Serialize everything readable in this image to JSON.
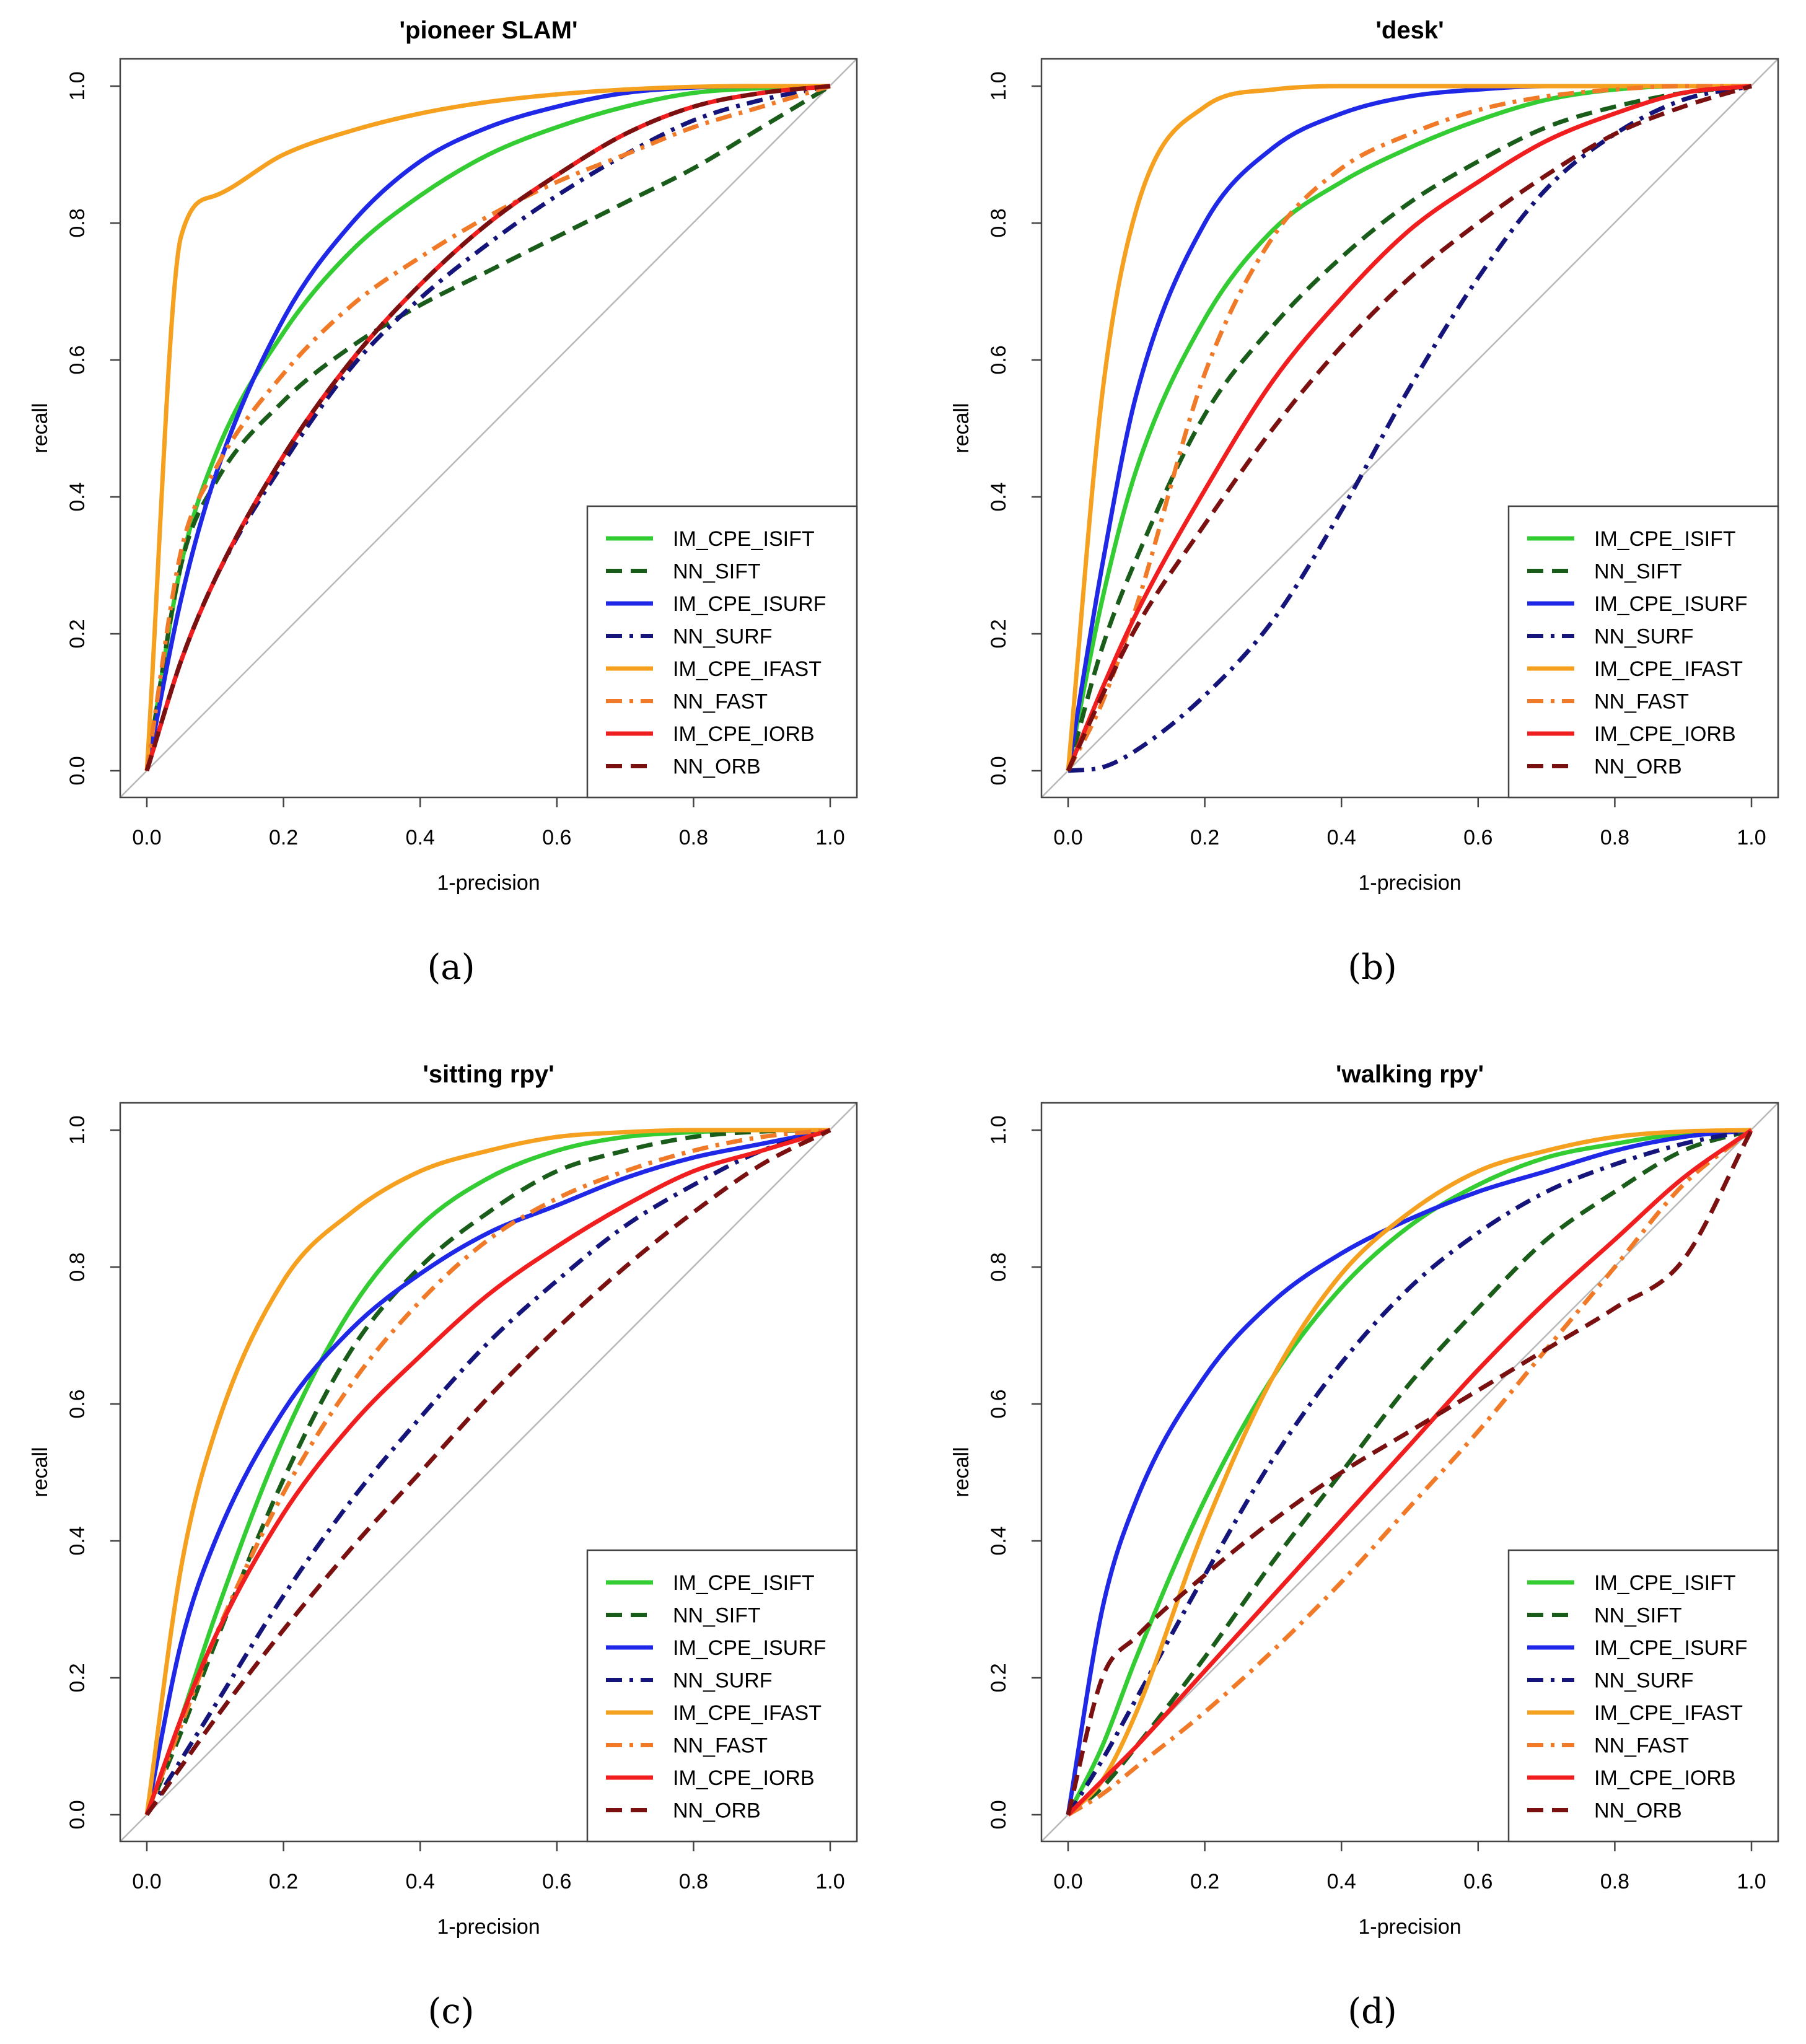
{
  "figure": {
    "series_styles": {
      "IM_CPE_ISIFT": {
        "color": "#33cc33",
        "dash": "solid"
      },
      "NN_SIFT": {
        "color": "#1a5c1a",
        "dash": "dash"
      },
      "IM_CPE_ISURF": {
        "color": "#1e28e6",
        "dash": "solid"
      },
      "NN_SURF": {
        "color": "#14147a",
        "dash": "dashdot"
      },
      "IM_CPE_IFAST": {
        "color": "#f5a01e",
        "dash": "solid"
      },
      "NN_FAST": {
        "color": "#f07a28",
        "dash": "dashdot"
      },
      "IM_CPE_IORB": {
        "color": "#f01e1e",
        "dash": "solid"
      },
      "NN_ORB": {
        "color": "#7a1010",
        "dash": "dash"
      }
    },
    "diagonal_color": "#b8b8b8"
  },
  "chart_data": [
    {
      "type": "line",
      "title": "'pioneer SLAM'",
      "caption": "(a)",
      "xlabel": "1-precision",
      "ylabel": "recall",
      "xlim": [
        0,
        1
      ],
      "ylim": [
        0,
        1
      ],
      "xticks": [
        "0.0",
        "0.2",
        "0.4",
        "0.6",
        "0.8",
        "1.0"
      ],
      "yticks": [
        "0.0",
        "0.2",
        "0.4",
        "0.6",
        "0.8",
        "1.0"
      ],
      "x": [
        0,
        0.05,
        0.1,
        0.2,
        0.3,
        0.4,
        0.5,
        0.6,
        0.7,
        0.8,
        0.9,
        1.0
      ],
      "series": [
        {
          "name": "IM_CPE_ISIFT",
          "values": [
            0,
            0.3,
            0.46,
            0.64,
            0.76,
            0.84,
            0.9,
            0.94,
            0.97,
            0.99,
            0.997,
            1.0
          ]
        },
        {
          "name": "NN_SIFT",
          "values": [
            0,
            0.3,
            0.42,
            0.54,
            0.62,
            0.68,
            0.73,
            0.78,
            0.83,
            0.88,
            0.94,
            1.0
          ]
        },
        {
          "name": "IM_CPE_ISURF",
          "values": [
            0,
            0.25,
            0.43,
            0.66,
            0.8,
            0.89,
            0.94,
            0.97,
            0.99,
            0.998,
            1.0,
            1.0
          ]
        },
        {
          "name": "NN_SURF",
          "values": [
            0,
            0.16,
            0.28,
            0.45,
            0.59,
            0.69,
            0.77,
            0.84,
            0.9,
            0.95,
            0.98,
            1.0
          ]
        },
        {
          "name": "IM_CPE_IFAST",
          "values": [
            0,
            0.78,
            0.84,
            0.9,
            0.935,
            0.96,
            0.977,
            0.988,
            0.995,
            0.999,
            1.0,
            1.0
          ]
        },
        {
          "name": "NN_FAST",
          "values": [
            0,
            0.32,
            0.44,
            0.58,
            0.68,
            0.75,
            0.81,
            0.86,
            0.9,
            0.94,
            0.97,
            1.0
          ]
        },
        {
          "name": "IM_CPE_IORB",
          "values": [
            0,
            0.16,
            0.28,
            0.46,
            0.6,
            0.71,
            0.8,
            0.87,
            0.93,
            0.97,
            0.99,
            1.0
          ]
        },
        {
          "name": "NN_ORB",
          "values": [
            0,
            0.16,
            0.28,
            0.46,
            0.6,
            0.71,
            0.8,
            0.87,
            0.93,
            0.97,
            0.99,
            1.0
          ]
        }
      ],
      "legend": [
        "IM_CPE_ISIFT",
        "NN_SIFT",
        "IM_CPE_ISURF",
        "NN_SURF",
        "IM_CPE_IFAST",
        "NN_FAST",
        "IM_CPE_IORB",
        "NN_ORB"
      ],
      "legend_position": "bottom-right"
    },
    {
      "type": "line",
      "title": "'desk'",
      "caption": "(b)",
      "xlabel": "1-precision",
      "ylabel": "recall",
      "xlim": [
        0,
        1
      ],
      "ylim": [
        0,
        1
      ],
      "xticks": [
        "0.0",
        "0.2",
        "0.4",
        "0.6",
        "0.8",
        "1.0"
      ],
      "yticks": [
        "0.0",
        "0.2",
        "0.4",
        "0.6",
        "0.8",
        "1.0"
      ],
      "x": [
        0,
        0.05,
        0.1,
        0.2,
        0.3,
        0.4,
        0.5,
        0.6,
        0.7,
        0.8,
        0.9,
        1.0
      ],
      "series": [
        {
          "name": "IM_CPE_ISIFT",
          "values": [
            0,
            0.25,
            0.44,
            0.66,
            0.79,
            0.86,
            0.91,
            0.95,
            0.98,
            0.995,
            1.0,
            1.0
          ]
        },
        {
          "name": "NN_SIFT",
          "values": [
            0,
            0.18,
            0.31,
            0.52,
            0.65,
            0.75,
            0.83,
            0.89,
            0.94,
            0.97,
            0.99,
            1.0
          ]
        },
        {
          "name": "IM_CPE_ISURF",
          "values": [
            0,
            0.3,
            0.55,
            0.8,
            0.91,
            0.96,
            0.985,
            0.995,
            1.0,
            1.0,
            1.0,
            1.0
          ]
        },
        {
          "name": "NN_SURF",
          "values": [
            0,
            0.005,
            0.03,
            0.11,
            0.22,
            0.38,
            0.56,
            0.72,
            0.85,
            0.93,
            0.98,
            1.0
          ]
        },
        {
          "name": "IM_CPE_IFAST",
          "values": [
            0,
            0.55,
            0.82,
            0.97,
            0.995,
            1.0,
            1.0,
            1.0,
            1.0,
            1.0,
            1.0,
            1.0
          ]
        },
        {
          "name": "NN_FAST",
          "values": [
            0,
            0.1,
            0.24,
            0.58,
            0.78,
            0.88,
            0.93,
            0.965,
            0.985,
            0.995,
            1.0,
            1.0
          ]
        },
        {
          "name": "IM_CPE_IORB",
          "values": [
            0,
            0.12,
            0.23,
            0.41,
            0.57,
            0.69,
            0.79,
            0.86,
            0.92,
            0.96,
            0.99,
            1.0
          ]
        },
        {
          "name": "NN_ORB",
          "values": [
            0,
            0.11,
            0.21,
            0.36,
            0.5,
            0.62,
            0.72,
            0.8,
            0.87,
            0.93,
            0.97,
            1.0
          ]
        }
      ],
      "legend": [
        "IM_CPE_ISIFT",
        "NN_SIFT",
        "IM_CPE_ISURF",
        "NN_SURF",
        "IM_CPE_IFAST",
        "NN_FAST",
        "IM_CPE_IORB",
        "NN_ORB"
      ],
      "legend_position": "bottom-right"
    },
    {
      "type": "line",
      "title": "'sitting rpy'",
      "caption": "(c)",
      "xlabel": "1-precision",
      "ylabel": "recall",
      "xlim": [
        0,
        1
      ],
      "ylim": [
        0,
        1
      ],
      "xticks": [
        "0.0",
        "0.2",
        "0.4",
        "0.6",
        "0.8",
        "1.0"
      ],
      "yticks": [
        "0.0",
        "0.2",
        "0.4",
        "0.6",
        "0.8",
        "1.0"
      ],
      "x": [
        0,
        0.05,
        0.1,
        0.2,
        0.3,
        0.4,
        0.5,
        0.6,
        0.7,
        0.8,
        0.9,
        1.0
      ],
      "series": [
        {
          "name": "IM_CPE_ISIFT",
          "values": [
            0,
            0.14,
            0.29,
            0.55,
            0.74,
            0.86,
            0.93,
            0.97,
            0.99,
            0.997,
            1.0,
            1.0
          ]
        },
        {
          "name": "NN_SIFT",
          "values": [
            0,
            0.12,
            0.25,
            0.49,
            0.68,
            0.8,
            0.88,
            0.94,
            0.97,
            0.99,
            0.998,
            1.0
          ]
        },
        {
          "name": "IM_CPE_ISURF",
          "values": [
            0,
            0.25,
            0.4,
            0.59,
            0.71,
            0.79,
            0.85,
            0.89,
            0.93,
            0.96,
            0.98,
            1.0
          ]
        },
        {
          "name": "NN_SURF",
          "values": [
            0,
            0.08,
            0.16,
            0.32,
            0.46,
            0.58,
            0.69,
            0.78,
            0.86,
            0.92,
            0.97,
            1.0
          ]
        },
        {
          "name": "IM_CPE_IFAST",
          "values": [
            0,
            0.36,
            0.56,
            0.78,
            0.88,
            0.94,
            0.97,
            0.99,
            0.997,
            1.0,
            1.0,
            1.0
          ]
        },
        {
          "name": "NN_FAST",
          "values": [
            0,
            0.13,
            0.26,
            0.47,
            0.63,
            0.75,
            0.84,
            0.9,
            0.94,
            0.97,
            0.99,
            1.0
          ]
        },
        {
          "name": "IM_CPE_IORB",
          "values": [
            0,
            0.14,
            0.26,
            0.44,
            0.57,
            0.67,
            0.76,
            0.83,
            0.89,
            0.94,
            0.97,
            1.0
          ]
        },
        {
          "name": "NN_ORB",
          "values": [
            0,
            0.07,
            0.14,
            0.27,
            0.39,
            0.5,
            0.61,
            0.71,
            0.8,
            0.88,
            0.95,
            1.0
          ]
        }
      ],
      "legend": [
        "IM_CPE_ISIFT",
        "NN_SIFT",
        "IM_CPE_ISURF",
        "NN_SURF",
        "IM_CPE_IFAST",
        "NN_FAST",
        "IM_CPE_IORB",
        "NN_ORB"
      ],
      "legend_position": "bottom-right"
    },
    {
      "type": "line",
      "title": "'walking rpy'",
      "caption": "(d)",
      "xlabel": "1-precision",
      "ylabel": "recall",
      "xlim": [
        0,
        1
      ],
      "ylim": [
        0,
        1
      ],
      "xticks": [
        "0.0",
        "0.2",
        "0.4",
        "0.6",
        "0.8",
        "1.0"
      ],
      "yticks": [
        "0.0",
        "0.2",
        "0.4",
        "0.6",
        "0.8",
        "1.0"
      ],
      "x": [
        0,
        0.05,
        0.1,
        0.2,
        0.3,
        0.4,
        0.5,
        0.6,
        0.7,
        0.8,
        0.9,
        1.0
      ],
      "series": [
        {
          "name": "IM_CPE_ISIFT",
          "values": [
            0,
            0.1,
            0.23,
            0.46,
            0.64,
            0.77,
            0.86,
            0.92,
            0.96,
            0.98,
            0.995,
            1.0
          ]
        },
        {
          "name": "NN_SIFT",
          "values": [
            0,
            0.04,
            0.1,
            0.23,
            0.37,
            0.5,
            0.63,
            0.74,
            0.84,
            0.91,
            0.97,
            1.0
          ]
        },
        {
          "name": "IM_CPE_ISURF",
          "values": [
            0,
            0.3,
            0.46,
            0.64,
            0.75,
            0.82,
            0.87,
            0.91,
            0.94,
            0.97,
            0.99,
            1.0
          ]
        },
        {
          "name": "NN_SURF",
          "values": [
            0,
            0.08,
            0.17,
            0.35,
            0.52,
            0.66,
            0.77,
            0.85,
            0.91,
            0.95,
            0.98,
            1.0
          ]
        },
        {
          "name": "IM_CPE_IFAST",
          "values": [
            0,
            0.05,
            0.15,
            0.42,
            0.64,
            0.79,
            0.88,
            0.94,
            0.97,
            0.99,
            0.998,
            1.0
          ]
        },
        {
          "name": "NN_FAST",
          "values": [
            0,
            0.03,
            0.07,
            0.15,
            0.24,
            0.34,
            0.45,
            0.56,
            0.68,
            0.8,
            0.92,
            1.0
          ]
        },
        {
          "name": "IM_CPE_IORB",
          "values": [
            0,
            0.05,
            0.1,
            0.21,
            0.32,
            0.43,
            0.54,
            0.65,
            0.75,
            0.84,
            0.93,
            1.0
          ]
        },
        {
          "name": "NN_ORB",
          "values": [
            0,
            0.2,
            0.26,
            0.35,
            0.43,
            0.5,
            0.56,
            0.62,
            0.68,
            0.74,
            0.81,
            1.0
          ]
        }
      ],
      "legend": [
        "IM_CPE_ISIFT",
        "NN_SIFT",
        "IM_CPE_ISURF",
        "NN_SURF",
        "IM_CPE_IFAST",
        "NN_FAST",
        "IM_CPE_IORB",
        "NN_ORB"
      ],
      "legend_position": "bottom-right"
    }
  ]
}
